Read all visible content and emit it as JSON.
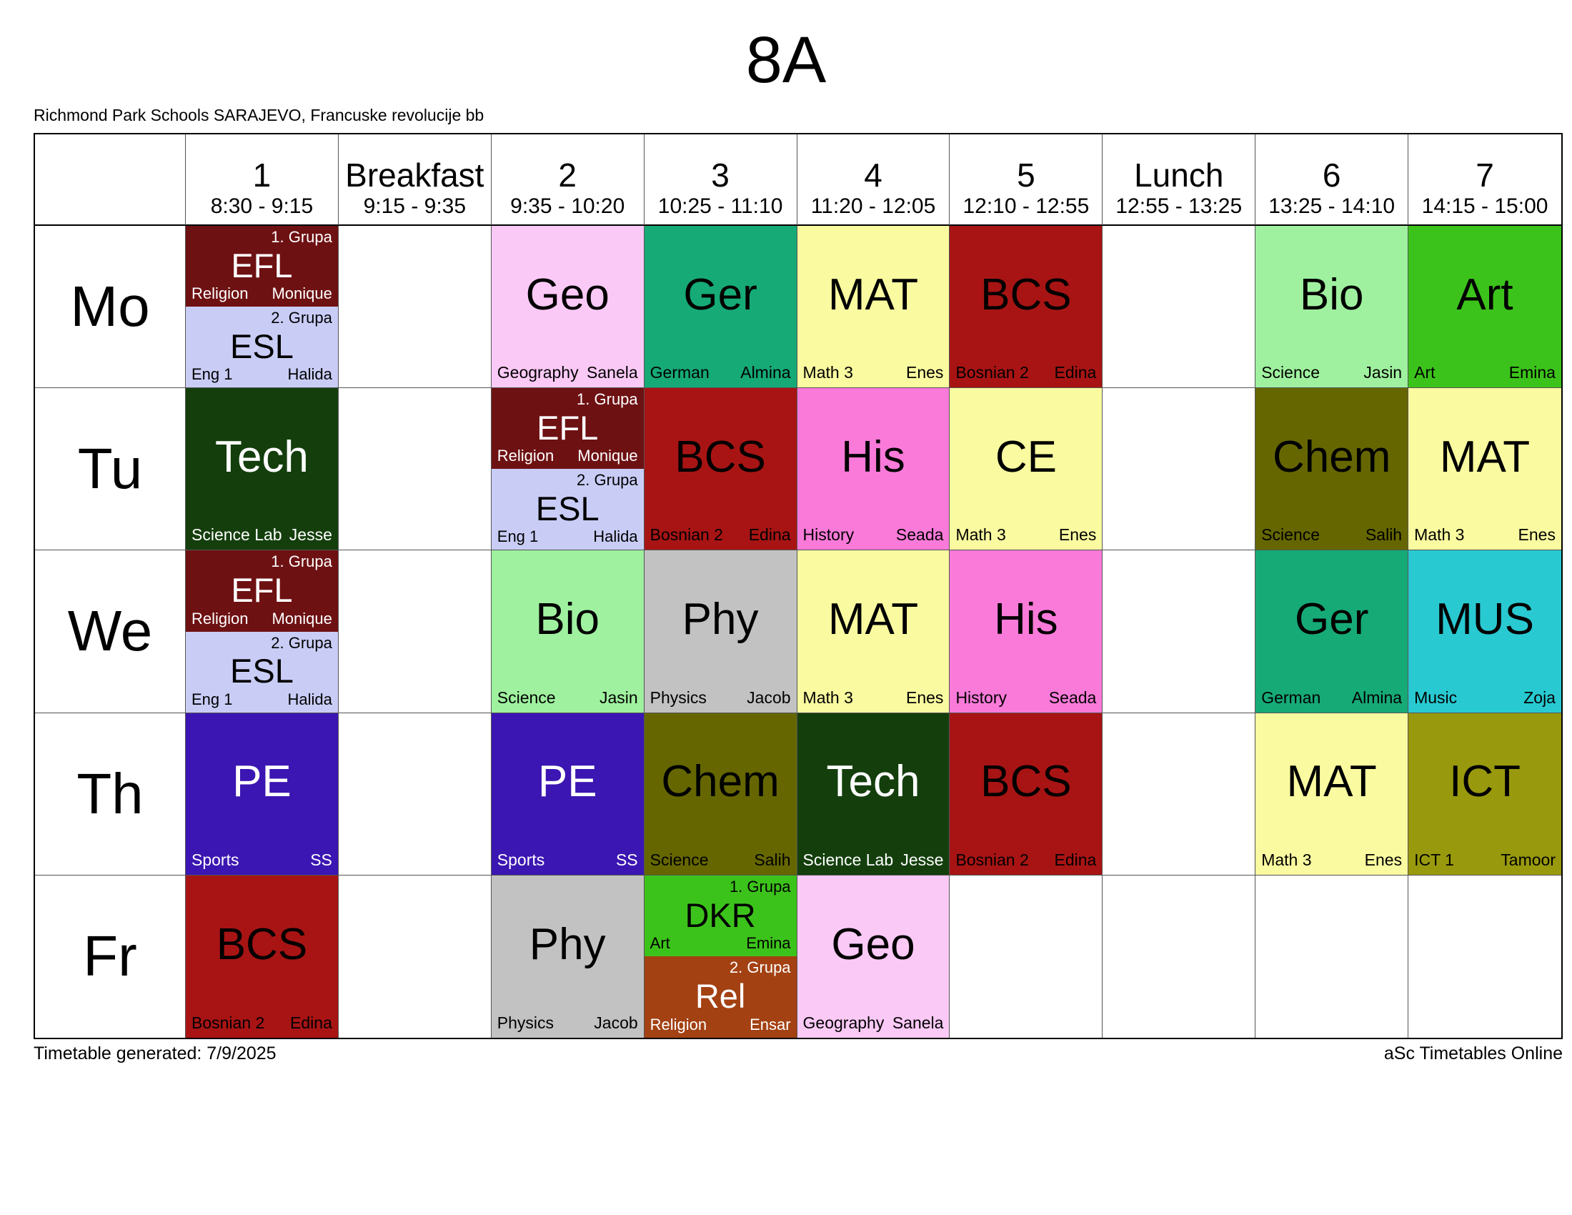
{
  "page": {
    "title": "8A",
    "school": "Richmond Park Schools SARAJEVO, Francuske revolucije bb",
    "footer_left": "Timetable generated: 7/9/2025",
    "footer_right": "aSc Timetables Online"
  },
  "header_columns": [
    {
      "label": "1",
      "time": "8:30 - 9:15"
    },
    {
      "label": "Breakfast",
      "time": "9:15 - 9:35"
    },
    {
      "label": "2",
      "time": "9:35 - 10:20"
    },
    {
      "label": "3",
      "time": "10:25 - 11:10"
    },
    {
      "label": "4",
      "time": "11:20 - 12:05"
    },
    {
      "label": "5",
      "time": "12:10 - 12:55"
    },
    {
      "label": "Lunch",
      "time": "12:55 - 13:25"
    },
    {
      "label": "6",
      "time": "13:25 - 14:10"
    },
    {
      "label": "7",
      "time": "14:15 - 15:00"
    }
  ],
  "days": [
    {
      "label": "Mo",
      "cells": [
        {
          "type": "split",
          "parts": [
            {
              "group": "1. Grupa",
              "subject": "EFL",
              "room": "Religion",
              "teacher": "Monique",
              "bg": "#6e1113",
              "fg": "#ffffff"
            },
            {
              "group": "2. Grupa",
              "subject": "ESL",
              "room": "Eng 1",
              "teacher": "Halida",
              "bg": "#c9cdf6",
              "fg": "#000000"
            }
          ]
        },
        null,
        {
          "type": "single",
          "subject": "Geo",
          "room": "Geography",
          "teacher": "Sanela",
          "bg": "#fbc9f6",
          "fg": "#000000"
        },
        {
          "type": "single",
          "subject": "Ger",
          "room": "German",
          "teacher": "Almina",
          "bg": "#16aa77",
          "fg": "#000000"
        },
        {
          "type": "single",
          "subject": "MAT",
          "room": "Math 3",
          "teacher": "Enes",
          "bg": "#fafaa0",
          "fg": "#000000"
        },
        {
          "type": "single",
          "subject": "BCS",
          "room": "Bosnian 2",
          "teacher": "Edina",
          "bg": "#a81414",
          "fg": "#000000"
        },
        null,
        {
          "type": "single",
          "subject": "Bio",
          "room": "Science",
          "teacher": "Jasin",
          "bg": "#9ff19f",
          "fg": "#000000"
        },
        {
          "type": "single",
          "subject": "Art",
          "room": "Art",
          "teacher": "Emina",
          "bg": "#3cc31b",
          "fg": "#000000"
        }
      ]
    },
    {
      "label": "Tu",
      "cells": [
        {
          "type": "single",
          "subject": "Tech",
          "room": "Science Lab",
          "teacher": "Jesse",
          "bg": "#143f0d",
          "fg": "#ffffff"
        },
        null,
        {
          "type": "split",
          "parts": [
            {
              "group": "1. Grupa",
              "subject": "EFL",
              "room": "Religion",
              "teacher": "Monique",
              "bg": "#6e1113",
              "fg": "#ffffff"
            },
            {
              "group": "2. Grupa",
              "subject": "ESL",
              "room": "Eng 1",
              "teacher": "Halida",
              "bg": "#c9cdf6",
              "fg": "#000000"
            }
          ]
        },
        {
          "type": "single",
          "subject": "BCS",
          "room": "Bosnian 2",
          "teacher": "Edina",
          "bg": "#a81414",
          "fg": "#000000"
        },
        {
          "type": "single",
          "subject": "His",
          "room": "History",
          "teacher": "Seada",
          "bg": "#f97ad9",
          "fg": "#000000"
        },
        {
          "type": "single",
          "subject": "CE",
          "room": "Math 3",
          "teacher": "Enes",
          "bg": "#fafaa0",
          "fg": "#000000"
        },
        null,
        {
          "type": "single",
          "subject": "Chem",
          "room": "Science",
          "teacher": "Salih",
          "bg": "#656600",
          "fg": "#000000"
        },
        {
          "type": "single",
          "subject": "MAT",
          "room": "Math 3",
          "teacher": "Enes",
          "bg": "#fafaa0",
          "fg": "#000000"
        }
      ]
    },
    {
      "label": "We",
      "cells": [
        {
          "type": "split",
          "parts": [
            {
              "group": "1. Grupa",
              "subject": "EFL",
              "room": "Religion",
              "teacher": "Monique",
              "bg": "#6e1113",
              "fg": "#ffffff"
            },
            {
              "group": "2. Grupa",
              "subject": "ESL",
              "room": "Eng 1",
              "teacher": "Halida",
              "bg": "#c9cdf6",
              "fg": "#000000"
            }
          ]
        },
        null,
        {
          "type": "single",
          "subject": "Bio",
          "room": "Science",
          "teacher": "Jasin",
          "bg": "#9ff19f",
          "fg": "#000000"
        },
        {
          "type": "single",
          "subject": "Phy",
          "room": "Physics",
          "teacher": "Jacob",
          "bg": "#c2c2c2",
          "fg": "#000000"
        },
        {
          "type": "single",
          "subject": "MAT",
          "room": "Math 3",
          "teacher": "Enes",
          "bg": "#fafaa0",
          "fg": "#000000"
        },
        {
          "type": "single",
          "subject": "His",
          "room": "History",
          "teacher": "Seada",
          "bg": "#f97ad9",
          "fg": "#000000"
        },
        null,
        {
          "type": "single",
          "subject": "Ger",
          "room": "German",
          "teacher": "Almina",
          "bg": "#16aa77",
          "fg": "#000000"
        },
        {
          "type": "single",
          "subject": "MUS",
          "room": "Music",
          "teacher": "Zoja",
          "bg": "#29c9d1",
          "fg": "#000000"
        }
      ]
    },
    {
      "label": "Th",
      "cells": [
        {
          "type": "single",
          "subject": "PE",
          "room": "Sports",
          "teacher": "SS",
          "bg": "#3b16b2",
          "fg": "#ffffff"
        },
        null,
        {
          "type": "single",
          "subject": "PE",
          "room": "Sports",
          "teacher": "SS",
          "bg": "#3b16b2",
          "fg": "#ffffff"
        },
        {
          "type": "single",
          "subject": "Chem",
          "room": "Science",
          "teacher": "Salih",
          "bg": "#656600",
          "fg": "#000000"
        },
        {
          "type": "single",
          "subject": "Tech",
          "room": "Science Lab",
          "teacher": "Jesse",
          "bg": "#143f0d",
          "fg": "#ffffff"
        },
        {
          "type": "single",
          "subject": "BCS",
          "room": "Bosnian 2",
          "teacher": "Edina",
          "bg": "#a81414",
          "fg": "#000000"
        },
        null,
        {
          "type": "single",
          "subject": "MAT",
          "room": "Math 3",
          "teacher": "Enes",
          "bg": "#fafaa0",
          "fg": "#000000"
        },
        {
          "type": "single",
          "subject": "ICT",
          "room": "ICT 1",
          "teacher": "Tamoor",
          "bg": "#99990e",
          "fg": "#000000"
        }
      ]
    },
    {
      "label": "Fr",
      "cells": [
        {
          "type": "single",
          "subject": "BCS",
          "room": "Bosnian 2",
          "teacher": "Edina",
          "bg": "#a81414",
          "fg": "#000000"
        },
        null,
        {
          "type": "single",
          "subject": "Phy",
          "room": "Physics",
          "teacher": "Jacob",
          "bg": "#c2c2c2",
          "fg": "#000000"
        },
        {
          "type": "split",
          "parts": [
            {
              "group": "1. Grupa",
              "subject": "DKR",
              "room": "Art",
              "teacher": "Emina",
              "bg": "#3cc31b",
              "fg": "#000000"
            },
            {
              "group": "2. Grupa",
              "subject": "Rel",
              "room": "Religion",
              "teacher": "Ensar",
              "bg": "#a34113",
              "fg": "#ffffff"
            }
          ]
        },
        {
          "type": "single",
          "subject": "Geo",
          "room": "Geography",
          "teacher": "Sanela",
          "bg": "#fbc9f6",
          "fg": "#000000"
        },
        null,
        null,
        null,
        null
      ]
    }
  ]
}
